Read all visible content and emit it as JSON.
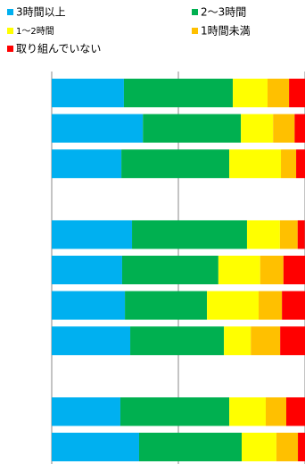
{
  "chart_data": {
    "type": "stacked_barh",
    "categories": [
      null,
      null,
      null,
      null,
      null,
      null,
      null,
      null,
      null,
      null,
      null
    ],
    "series": [
      {
        "name": "3時間以上",
        "color": "#00b0f0",
        "values": [
          28.5,
          36,
          27.5,
          null,
          31.7,
          27.8,
          28.9,
          31,
          null,
          27.1,
          34.5
        ]
      },
      {
        "name": "2～3時間",
        "color": "#00b050",
        "values": [
          43,
          38.7,
          42.6,
          null,
          45.4,
          38,
          32.4,
          37,
          null,
          43,
          40.5
        ]
      },
      {
        "name": "1～2時間",
        "color": "#ffff00",
        "values": [
          13.7,
          12.7,
          20.4,
          null,
          13,
          16.5,
          20.4,
          10.6,
          null,
          14.4,
          13.7
        ]
      },
      {
        "name": "1時間未満",
        "color": "#ffc000",
        "values": [
          8.5,
          8.5,
          6,
          null,
          7,
          9.2,
          9.2,
          11.6,
          null,
          8.1,
          8.5
        ]
      },
      {
        "name": "取り組んでいない",
        "color": "#ff0000",
        "values": [
          6.3,
          4.2,
          3.5,
          null,
          2.8,
          8.5,
          9.2,
          9.9,
          null,
          7.4,
          2.8
        ]
      }
    ],
    "xlim": [
      0,
      100
    ],
    "xticks": [
      0,
      50,
      100
    ],
    "grid": true,
    "legend": "top"
  }
}
